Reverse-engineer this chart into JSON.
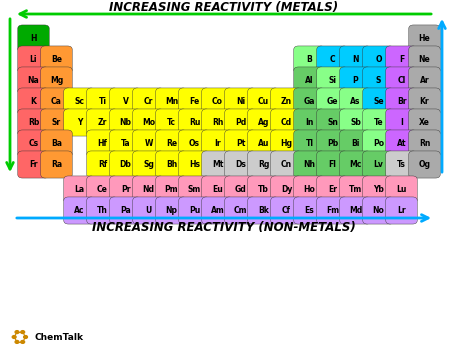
{
  "title_top": "INCREASING REACTIVITY (METALS)",
  "title_bottom": "INCREASING REACTIVITY (NON-METALS)",
  "bg_color": "#ffffff",
  "colors": {
    "alkali_metal": "#FF6666",
    "alkaline_earth": "#FF9933",
    "transition_metal": "#FFFF00",
    "post_transition": "#66CC66",
    "metalloid": "#88FF88",
    "nonmetal": "#00CCFF",
    "halogen": "#CC66FF",
    "noble_gas": "#AAAAAA",
    "lanthanide": "#FF99BB",
    "actinide": "#CC99FF",
    "hydrogen": "#00AA00",
    "mt_ds": "#CCCCCC"
  },
  "elements": [
    {
      "sym": "H",
      "row": 0,
      "col": 0,
      "type": "hydrogen"
    },
    {
      "sym": "He",
      "row": 0,
      "col": 17,
      "type": "noble_gas"
    },
    {
      "sym": "Li",
      "row": 1,
      "col": 0,
      "type": "alkali_metal"
    },
    {
      "sym": "Be",
      "row": 1,
      "col": 1,
      "type": "alkaline_earth"
    },
    {
      "sym": "B",
      "row": 1,
      "col": 12,
      "type": "metalloid"
    },
    {
      "sym": "C",
      "row": 1,
      "col": 13,
      "type": "nonmetal"
    },
    {
      "sym": "N",
      "row": 1,
      "col": 14,
      "type": "nonmetal"
    },
    {
      "sym": "O",
      "row": 1,
      "col": 15,
      "type": "nonmetal"
    },
    {
      "sym": "F",
      "row": 1,
      "col": 16,
      "type": "halogen"
    },
    {
      "sym": "Ne",
      "row": 1,
      "col": 17,
      "type": "noble_gas"
    },
    {
      "sym": "Na",
      "row": 2,
      "col": 0,
      "type": "alkali_metal"
    },
    {
      "sym": "Mg",
      "row": 2,
      "col": 1,
      "type": "alkaline_earth"
    },
    {
      "sym": "Al",
      "row": 2,
      "col": 12,
      "type": "post_transition"
    },
    {
      "sym": "Si",
      "row": 2,
      "col": 13,
      "type": "metalloid"
    },
    {
      "sym": "P",
      "row": 2,
      "col": 14,
      "type": "nonmetal"
    },
    {
      "sym": "S",
      "row": 2,
      "col": 15,
      "type": "nonmetal"
    },
    {
      "sym": "Cl",
      "row": 2,
      "col": 16,
      "type": "halogen"
    },
    {
      "sym": "Ar",
      "row": 2,
      "col": 17,
      "type": "noble_gas"
    },
    {
      "sym": "K",
      "row": 3,
      "col": 0,
      "type": "alkali_metal"
    },
    {
      "sym": "Ca",
      "row": 3,
      "col": 1,
      "type": "alkaline_earth"
    },
    {
      "sym": "Sc",
      "row": 3,
      "col": 2,
      "type": "transition_metal"
    },
    {
      "sym": "Ti",
      "row": 3,
      "col": 3,
      "type": "transition_metal"
    },
    {
      "sym": "V",
      "row": 3,
      "col": 4,
      "type": "transition_metal"
    },
    {
      "sym": "Cr",
      "row": 3,
      "col": 5,
      "type": "transition_metal"
    },
    {
      "sym": "Mn",
      "row": 3,
      "col": 6,
      "type": "transition_metal"
    },
    {
      "sym": "Fe",
      "row": 3,
      "col": 7,
      "type": "transition_metal"
    },
    {
      "sym": "Co",
      "row": 3,
      "col": 8,
      "type": "transition_metal"
    },
    {
      "sym": "Ni",
      "row": 3,
      "col": 9,
      "type": "transition_metal"
    },
    {
      "sym": "Cu",
      "row": 3,
      "col": 10,
      "type": "transition_metal"
    },
    {
      "sym": "Zn",
      "row": 3,
      "col": 11,
      "type": "transition_metal"
    },
    {
      "sym": "Ga",
      "row": 3,
      "col": 12,
      "type": "post_transition"
    },
    {
      "sym": "Ge",
      "row": 3,
      "col": 13,
      "type": "metalloid"
    },
    {
      "sym": "As",
      "row": 3,
      "col": 14,
      "type": "metalloid"
    },
    {
      "sym": "Se",
      "row": 3,
      "col": 15,
      "type": "nonmetal"
    },
    {
      "sym": "Br",
      "row": 3,
      "col": 16,
      "type": "halogen"
    },
    {
      "sym": "Kr",
      "row": 3,
      "col": 17,
      "type": "noble_gas"
    },
    {
      "sym": "Rb",
      "row": 4,
      "col": 0,
      "type": "alkali_metal"
    },
    {
      "sym": "Sr",
      "row": 4,
      "col": 1,
      "type": "alkaline_earth"
    },
    {
      "sym": "Y",
      "row": 4,
      "col": 2,
      "type": "transition_metal"
    },
    {
      "sym": "Zr",
      "row": 4,
      "col": 3,
      "type": "transition_metal"
    },
    {
      "sym": "Nb",
      "row": 4,
      "col": 4,
      "type": "transition_metal"
    },
    {
      "sym": "Mo",
      "row": 4,
      "col": 5,
      "type": "transition_metal"
    },
    {
      "sym": "Tc",
      "row": 4,
      "col": 6,
      "type": "transition_metal"
    },
    {
      "sym": "Ru",
      "row": 4,
      "col": 7,
      "type": "transition_metal"
    },
    {
      "sym": "Rh",
      "row": 4,
      "col": 8,
      "type": "transition_metal"
    },
    {
      "sym": "Pd",
      "row": 4,
      "col": 9,
      "type": "transition_metal"
    },
    {
      "sym": "Ag",
      "row": 4,
      "col": 10,
      "type": "transition_metal"
    },
    {
      "sym": "Cd",
      "row": 4,
      "col": 11,
      "type": "transition_metal"
    },
    {
      "sym": "In",
      "row": 4,
      "col": 12,
      "type": "post_transition"
    },
    {
      "sym": "Sn",
      "row": 4,
      "col": 13,
      "type": "post_transition"
    },
    {
      "sym": "Sb",
      "row": 4,
      "col": 14,
      "type": "metalloid"
    },
    {
      "sym": "Te",
      "row": 4,
      "col": 15,
      "type": "metalloid"
    },
    {
      "sym": "I",
      "row": 4,
      "col": 16,
      "type": "halogen"
    },
    {
      "sym": "Xe",
      "row": 4,
      "col": 17,
      "type": "noble_gas"
    },
    {
      "sym": "Cs",
      "row": 5,
      "col": 0,
      "type": "alkali_metal"
    },
    {
      "sym": "Ba",
      "row": 5,
      "col": 1,
      "type": "alkaline_earth"
    },
    {
      "sym": "Hf",
      "row": 5,
      "col": 3,
      "type": "transition_metal"
    },
    {
      "sym": "Ta",
      "row": 5,
      "col": 4,
      "type": "transition_metal"
    },
    {
      "sym": "W",
      "row": 5,
      "col": 5,
      "type": "transition_metal"
    },
    {
      "sym": "Re",
      "row": 5,
      "col": 6,
      "type": "transition_metal"
    },
    {
      "sym": "Os",
      "row": 5,
      "col": 7,
      "type": "transition_metal"
    },
    {
      "sym": "Ir",
      "row": 5,
      "col": 8,
      "type": "transition_metal"
    },
    {
      "sym": "Pt",
      "row": 5,
      "col": 9,
      "type": "transition_metal"
    },
    {
      "sym": "Au",
      "row": 5,
      "col": 10,
      "type": "transition_metal"
    },
    {
      "sym": "Hg",
      "row": 5,
      "col": 11,
      "type": "transition_metal"
    },
    {
      "sym": "Tl",
      "row": 5,
      "col": 12,
      "type": "post_transition"
    },
    {
      "sym": "Pb",
      "row": 5,
      "col": 13,
      "type": "post_transition"
    },
    {
      "sym": "Bi",
      "row": 5,
      "col": 14,
      "type": "post_transition"
    },
    {
      "sym": "Po",
      "row": 5,
      "col": 15,
      "type": "metalloid"
    },
    {
      "sym": "At",
      "row": 5,
      "col": 16,
      "type": "halogen"
    },
    {
      "sym": "Rn",
      "row": 5,
      "col": 17,
      "type": "noble_gas"
    },
    {
      "sym": "Fr",
      "row": 6,
      "col": 0,
      "type": "alkali_metal"
    },
    {
      "sym": "Ra",
      "row": 6,
      "col": 1,
      "type": "alkaline_earth"
    },
    {
      "sym": "Rf",
      "row": 6,
      "col": 3,
      "type": "transition_metal"
    },
    {
      "sym": "Db",
      "row": 6,
      "col": 4,
      "type": "transition_metal"
    },
    {
      "sym": "Sg",
      "row": 6,
      "col": 5,
      "type": "transition_metal"
    },
    {
      "sym": "Bh",
      "row": 6,
      "col": 6,
      "type": "transition_metal"
    },
    {
      "sym": "Hs",
      "row": 6,
      "col": 7,
      "type": "transition_metal"
    },
    {
      "sym": "Mt",
      "row": 6,
      "col": 8,
      "type": "mt_ds"
    },
    {
      "sym": "Ds",
      "row": 6,
      "col": 9,
      "type": "mt_ds"
    },
    {
      "sym": "Rg",
      "row": 6,
      "col": 10,
      "type": "mt_ds"
    },
    {
      "sym": "Cn",
      "row": 6,
      "col": 11,
      "type": "mt_ds"
    },
    {
      "sym": "Nh",
      "row": 6,
      "col": 12,
      "type": "post_transition"
    },
    {
      "sym": "Fl",
      "row": 6,
      "col": 13,
      "type": "post_transition"
    },
    {
      "sym": "Mc",
      "row": 6,
      "col": 14,
      "type": "post_transition"
    },
    {
      "sym": "Lv",
      "row": 6,
      "col": 15,
      "type": "post_transition"
    },
    {
      "sym": "Ts",
      "row": 6,
      "col": 16,
      "type": "mt_ds"
    },
    {
      "sym": "Og",
      "row": 6,
      "col": 17,
      "type": "noble_gas"
    },
    {
      "sym": "La",
      "row": 8,
      "col": 2,
      "type": "lanthanide"
    },
    {
      "sym": "Ce",
      "row": 8,
      "col": 3,
      "type": "lanthanide"
    },
    {
      "sym": "Pr",
      "row": 8,
      "col": 4,
      "type": "lanthanide"
    },
    {
      "sym": "Nd",
      "row": 8,
      "col": 5,
      "type": "lanthanide"
    },
    {
      "sym": "Pm",
      "row": 8,
      "col": 6,
      "type": "lanthanide"
    },
    {
      "sym": "Sm",
      "row": 8,
      "col": 7,
      "type": "lanthanide"
    },
    {
      "sym": "Eu",
      "row": 8,
      "col": 8,
      "type": "lanthanide"
    },
    {
      "sym": "Gd",
      "row": 8,
      "col": 9,
      "type": "lanthanide"
    },
    {
      "sym": "Tb",
      "row": 8,
      "col": 10,
      "type": "lanthanide"
    },
    {
      "sym": "Dy",
      "row": 8,
      "col": 11,
      "type": "lanthanide"
    },
    {
      "sym": "Ho",
      "row": 8,
      "col": 12,
      "type": "lanthanide"
    },
    {
      "sym": "Er",
      "row": 8,
      "col": 13,
      "type": "lanthanide"
    },
    {
      "sym": "Tm",
      "row": 8,
      "col": 14,
      "type": "lanthanide"
    },
    {
      "sym": "Yb",
      "row": 8,
      "col": 15,
      "type": "lanthanide"
    },
    {
      "sym": "Lu",
      "row": 8,
      "col": 16,
      "type": "lanthanide"
    },
    {
      "sym": "Ac",
      "row": 9,
      "col": 2,
      "type": "actinide"
    },
    {
      "sym": "Th",
      "row": 9,
      "col": 3,
      "type": "actinide"
    },
    {
      "sym": "Pa",
      "row": 9,
      "col": 4,
      "type": "actinide"
    },
    {
      "sym": "U",
      "row": 9,
      "col": 5,
      "type": "actinide"
    },
    {
      "sym": "Np",
      "row": 9,
      "col": 6,
      "type": "actinide"
    },
    {
      "sym": "Pu",
      "row": 9,
      "col": 7,
      "type": "actinide"
    },
    {
      "sym": "Am",
      "row": 9,
      "col": 8,
      "type": "actinide"
    },
    {
      "sym": "Cm",
      "row": 9,
      "col": 9,
      "type": "actinide"
    },
    {
      "sym": "Bk",
      "row": 9,
      "col": 10,
      "type": "actinide"
    },
    {
      "sym": "Cf",
      "row": 9,
      "col": 11,
      "type": "actinide"
    },
    {
      "sym": "Es",
      "row": 9,
      "col": 12,
      "type": "actinide"
    },
    {
      "sym": "Fm",
      "row": 9,
      "col": 13,
      "type": "actinide"
    },
    {
      "sym": "Md",
      "row": 9,
      "col": 14,
      "type": "actinide"
    },
    {
      "sym": "No",
      "row": 9,
      "col": 15,
      "type": "actinide"
    },
    {
      "sym": "Lr",
      "row": 9,
      "col": 16,
      "type": "actinide"
    }
  ],
  "arrow_green_color": "#00CC00",
  "arrow_cyan_color": "#00AAFF",
  "title_fontsize": 8.5,
  "elem_fontsize_1": 5.5,
  "elem_fontsize_2": 4.8,
  "chemtalk_color": "#333333"
}
